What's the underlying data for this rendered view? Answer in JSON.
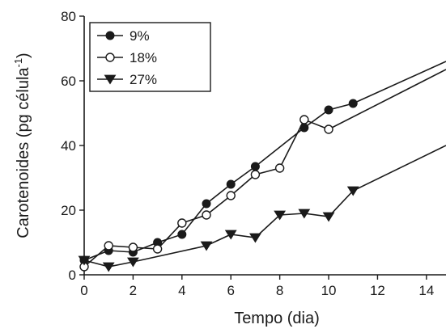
{
  "chart_data": {
    "type": "line",
    "xlabel": "Tempo (dia)",
    "ylabel_main": "Carotenoides (pg célula",
    "ylabel_sup": "-1",
    "ylabel_close": ")",
    "xlim": [
      0,
      14.8
    ],
    "ylim": [
      0,
      80
    ],
    "xticks": [
      0,
      2,
      4,
      6,
      8,
      10,
      12,
      14
    ],
    "yticks": [
      0,
      20,
      40,
      60,
      80
    ],
    "legend_position": "top-left",
    "grid": false,
    "series": [
      {
        "name": "9%",
        "marker": "filled-circle",
        "x": [
          0,
          1,
          2,
          3,
          4,
          5,
          6,
          7,
          9,
          10,
          11
        ],
        "y": [
          4.5,
          7.5,
          7,
          10,
          12.5,
          22,
          28,
          33.5,
          45.5,
          51,
          53
        ],
        "trend_to": [
          14.8,
          66
        ]
      },
      {
        "name": "18%",
        "marker": "open-circle",
        "x": [
          0,
          1,
          2,
          3,
          4,
          5,
          6,
          7,
          8,
          9,
          10
        ],
        "y": [
          2.5,
          9,
          8.5,
          8,
          16,
          18.5,
          24.5,
          31,
          33,
          48,
          45
        ],
        "trend_to": [
          14.8,
          63.5
        ]
      },
      {
        "name": "27%",
        "marker": "filled-triangle-down",
        "x": [
          0,
          1,
          2,
          5,
          6,
          7,
          8,
          9,
          10,
          11
        ],
        "y": [
          4.5,
          2.5,
          4,
          9,
          12.5,
          11.5,
          18.5,
          19,
          18,
          26
        ],
        "trend_to": [
          14.8,
          40
        ]
      }
    ]
  }
}
